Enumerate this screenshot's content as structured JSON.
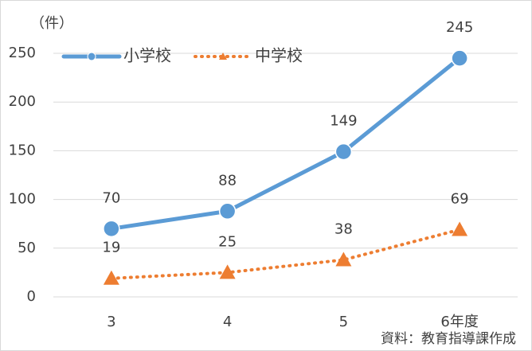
{
  "chart_data": {
    "type": "line",
    "unit_label": "（件）",
    "source": "資料：教育指導課作成",
    "categories": [
      "3",
      "4",
      "5",
      "6年度"
    ],
    "series": [
      {
        "name": "小学校",
        "color": "#5b9bd5",
        "marker": "circle",
        "dashed": false,
        "values": [
          70,
          88,
          149,
          245
        ]
      },
      {
        "name": "中学校",
        "color": "#ed7d31",
        "marker": "triangle",
        "dashed": true,
        "values": [
          19,
          25,
          38,
          69
        ]
      }
    ],
    "ylim": [
      0,
      250
    ],
    "yticks": [
      0,
      50,
      100,
      150,
      200,
      250
    ],
    "grid": true,
    "legend": "top-left"
  }
}
